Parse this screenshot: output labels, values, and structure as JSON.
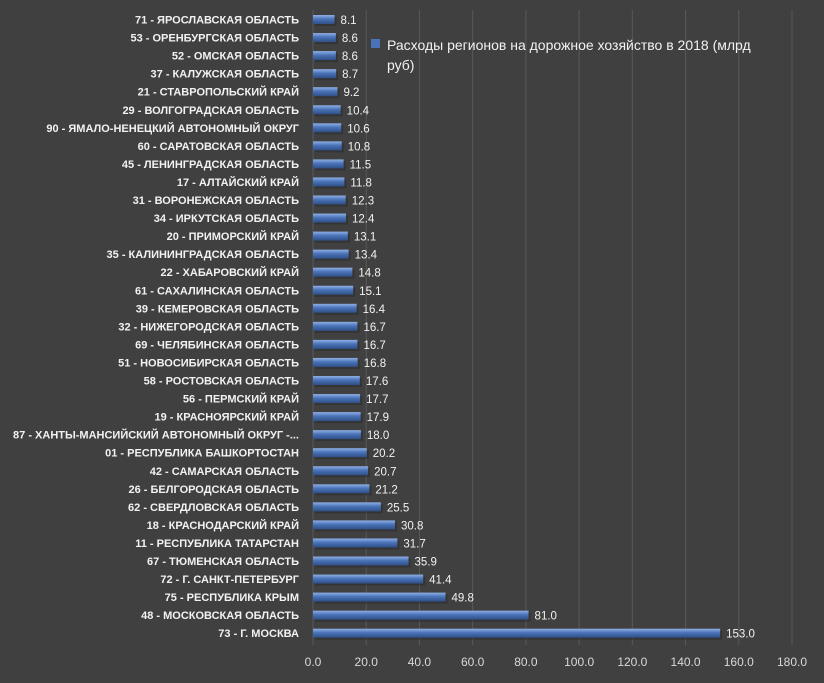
{
  "chart_data": {
    "type": "bar",
    "orientation": "horizontal",
    "categories": [
      "71 - ЯРОСЛАВСКАЯ ОБЛАСТЬ",
      "53 - ОРЕНБУРГСКАЯ ОБЛАСТЬ",
      "52 - ОМСКАЯ ОБЛАСТЬ",
      "37 - КАЛУЖСКАЯ ОБЛАСТЬ",
      "21 - СТАВРОПОЛЬСКИЙ КРАЙ",
      "29 - ВОЛГОГРАДСКАЯ ОБЛАСТЬ",
      "90 - ЯМАЛО-НЕНЕЦКИЙ АВТОНОМНЫЙ ОКРУГ",
      "60 - САРАТОВСКАЯ ОБЛАСТЬ",
      "45 - ЛЕНИНГРАДСКАЯ ОБЛАСТЬ",
      "17 - АЛТАЙСКИЙ КРАЙ",
      "31 - ВОРОНЕЖСКАЯ ОБЛАСТЬ",
      "34 - ИРКУТСКАЯ ОБЛАСТЬ",
      "20 - ПРИМОРСКИЙ КРАЙ",
      "35 - КАЛИНИНГРАДСКАЯ ОБЛАСТЬ",
      "22 - ХАБАРОВСКИЙ КРАЙ",
      "61 - САХАЛИНСКАЯ ОБЛАСТЬ",
      "39 - КЕМЕРОВСКАЯ ОБЛАСТЬ",
      "32 - НИЖЕГОРОДСКАЯ ОБЛАСТЬ",
      "69 - ЧЕЛЯБИНСКАЯ ОБЛАСТЬ",
      "51 - НОВОСИБИРСКАЯ ОБЛАСТЬ",
      "58 - РОСТОВСКАЯ ОБЛАСТЬ",
      "56 - ПЕРМСКИЙ КРАЙ",
      "19 - КРАСНОЯРСКИЙ КРАЙ",
      "87 - ХАНТЫ-МАНСИЙСКИЙ АВТОНОМНЫЙ ОКРУГ -...",
      "01 - РЕСПУБЛИКА БАШКОРТОСТАН",
      "42 - САМАРСКАЯ ОБЛАСТЬ",
      "26 - БЕЛГОРОДСКАЯ ОБЛАСТЬ",
      "62 - СВЕРДЛОВСКАЯ ОБЛАСТЬ",
      "18 - КРАСНОДАРСКИЙ КРАЙ",
      "11 - РЕСПУБЛИКА ТАТАРСТАН",
      "67 - ТЮМЕНСКАЯ ОБЛАСТЬ",
      "72 - Г. САНКТ-ПЕТЕРБУРГ",
      "75 - РЕСПУБЛИКА КРЫМ",
      "48 - МОСКОВСКАЯ ОБЛАСТЬ",
      "73 - Г. МОСКВА"
    ],
    "series": [
      {
        "name": "Расходы регионов на дорожное хозяйство в 2018 (млрд руб)",
        "values": [
          8.1,
          8.6,
          8.6,
          8.7,
          9.2,
          10.4,
          10.6,
          10.8,
          11.5,
          11.8,
          12.3,
          12.4,
          13.1,
          13.4,
          14.8,
          15.1,
          16.4,
          16.7,
          16.7,
          16.8,
          17.6,
          17.7,
          17.9,
          18.0,
          20.2,
          20.7,
          21.2,
          25.5,
          30.8,
          31.7,
          35.9,
          41.4,
          49.8,
          81.0,
          153.0
        ],
        "value_labels": [
          "8.1",
          "8.6",
          "8.6",
          "8.7",
          "9.2",
          "10.4",
          "10.6",
          "10.8",
          "11.5",
          "11.8",
          "12.3",
          "12.4",
          "13.1",
          "13.4",
          "14.8",
          "15.1",
          "16.4",
          "16.7",
          "16.7",
          "16.8",
          "17.6",
          "17.7",
          "17.9",
          "18.0",
          "20.2",
          "20.7",
          "21.2",
          "25.5",
          "30.8",
          "31.7",
          "35.9",
          "41.4",
          "49.8",
          "81.0",
          "153.0"
        ]
      }
    ],
    "x_ticks": [
      "0.0",
      "20.0",
      "40.0",
      "60.0",
      "80.0",
      "100.0",
      "120.0",
      "140.0",
      "160.0",
      "180.0"
    ],
    "xlim": [
      0,
      180
    ],
    "title": "",
    "xlabel": "",
    "ylabel": "",
    "grid": "vertical",
    "legend_position": "top-right",
    "colors": {
      "background": "#404040",
      "bar": "#4a73b8",
      "bar_highlight": "#8fb0e6",
      "grid": "#595959",
      "text": "#f2f2f2"
    }
  }
}
